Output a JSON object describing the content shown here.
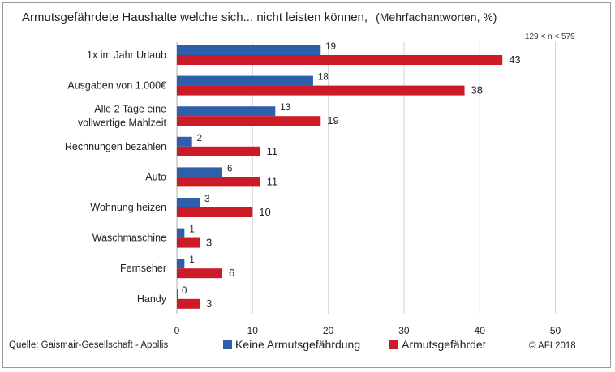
{
  "title": "Armutsgefährdete Haushalte welche sich... nicht leisten können,",
  "subtitle": "(Mehrfachantworten, %)",
  "sample_note": "129 < n < 579",
  "source": "Quelle: Gaismair-Gesellschaft - Apollis",
  "copyright": "© AFI 2018",
  "colors": {
    "blue": "#2e5fad",
    "red": "#cc1a27",
    "grid": "#d4d4d4"
  },
  "chart_data": {
    "type": "bar",
    "orientation": "horizontal",
    "categories": [
      [
        "1x im Jahr Urlaub"
      ],
      [
        "Ausgaben von 1.000€"
      ],
      [
        "Alle 2 Tage eine",
        "vollwertige Mahlzeit"
      ],
      [
        "Rechnungen bezahlen"
      ],
      [
        "Auto"
      ],
      [
        "Wohnung heizen"
      ],
      [
        "Waschmaschine"
      ],
      [
        "Fernseher"
      ],
      [
        "Handy"
      ]
    ],
    "series": [
      {
        "name": "Keine Armutsgefährdung",
        "color": "#2e5fad",
        "values": [
          19,
          18,
          13,
          2,
          6,
          3,
          1,
          1,
          0
        ]
      },
      {
        "name": "Armutsgefährdet",
        "color": "#cc1a27",
        "values": [
          43,
          38,
          19,
          11,
          11,
          10,
          3,
          6,
          3
        ]
      }
    ],
    "xlim": [
      0,
      50
    ],
    "xticks": [
      "0",
      "10",
      "20",
      "30",
      "40",
      "50"
    ],
    "grid": true,
    "legend_position": "bottom"
  }
}
